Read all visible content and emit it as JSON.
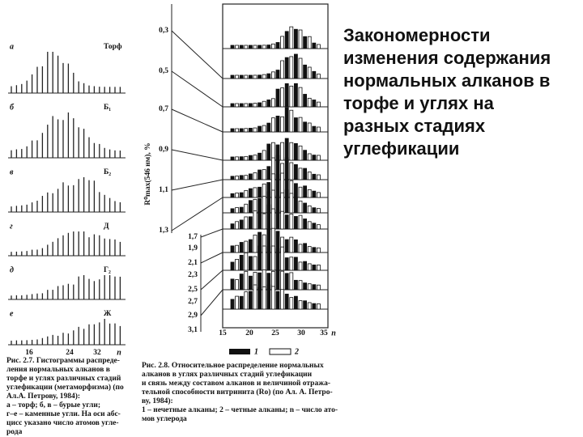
{
  "title": [
    "Закономерности",
    "изменения содержания",
    "нормальных алканов в",
    "торфе и углях на",
    "разных стадиях",
    "углефикации"
  ],
  "figure_left": {
    "panels": [
      {
        "letter": "а",
        "label": "Торф"
      },
      {
        "letter": "б",
        "label": "Б₁"
      },
      {
        "letter": "в",
        "label": "Б₂"
      },
      {
        "letter": "г",
        "label": "Д"
      },
      {
        "letter": "д",
        "label": "Г₂"
      },
      {
        "letter": "е",
        "label": "Ж"
      }
    ],
    "x_labels": [
      "16",
      "24",
      "32",
      "n"
    ],
    "caption": [
      "Рис. 2.7. Гистограммы распреде-",
      "ления нормальных алканов в",
      "торфе и углях различных стадий",
      "углефикации (метаморфизма) (по",
      "Ал.А. Петрову, 1984):",
      "а – торф; б, в – бурые угли;",
      "г–е – каменные угли. На оси абс-",
      "цисс указано число атомов угле-",
      "рода"
    ]
  },
  "figure_right": {
    "y_label": "R⁰max(546 нм), %",
    "y_labels_upper": [
      "0,3",
      "0,5",
      "0,7",
      "0,9",
      "1,1",
      "1,3"
    ],
    "y_labels_lower": [
      "1,7",
      "1,9",
      "2,1",
      "2,3",
      "2,5",
      "2,7",
      "2,9",
      "3,1"
    ],
    "x_labels": [
      "15",
      "20",
      "25",
      "30",
      "35",
      "n"
    ],
    "legend": [
      "1",
      "2"
    ],
    "caption": [
      "Рис. 2.8. Относительное распределение нормальных",
      "алканов в углях различных стадий углефикации",
      "и связь между составом алканов и величиной отража-",
      "тельной способности витринита (Rо) (по Ал. А. Петро-",
      "ву, 1984):",
      "1 – нечетные алканы; 2 – четные алканы; n – число ато-",
      "мов углерода"
    ]
  }
}
